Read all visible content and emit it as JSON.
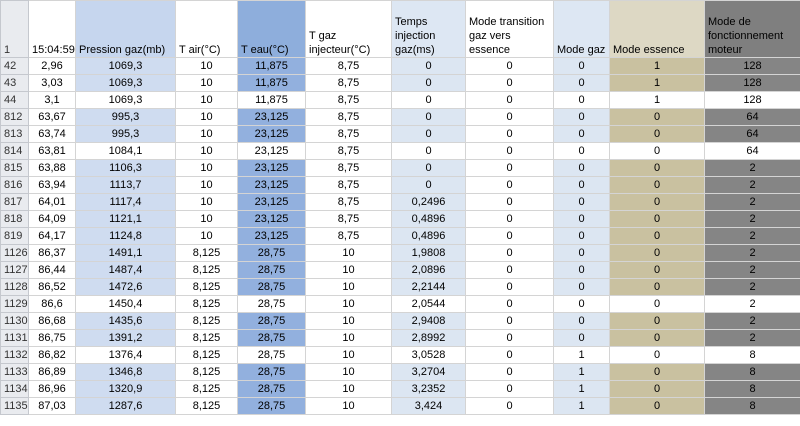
{
  "columns": [
    {
      "key": "row",
      "label": "1"
    },
    {
      "key": "time",
      "label": "15:04:59"
    },
    {
      "key": "pression",
      "label": "Pression gaz(mb)"
    },
    {
      "key": "tair",
      "label": "T air(°C)"
    },
    {
      "key": "teau",
      "label": "T eau(°C)"
    },
    {
      "key": "tgaz",
      "label": "T gaz injecteur(°C)"
    },
    {
      "key": "temps",
      "label": "Temps injection gaz(ms)"
    },
    {
      "key": "transition",
      "label": "Mode transition gaz vers essence"
    },
    {
      "key": "modegaz",
      "label": "Mode gaz"
    },
    {
      "key": "modeessence",
      "label": "Mode essence"
    },
    {
      "key": "fonctionnement",
      "label": "Mode de fonctionnement moteur"
    }
  ],
  "rows": [
    {
      "row": "42",
      "time": "2,96",
      "pression": "1069,3",
      "tair": "10",
      "teau": "11,875",
      "tgaz": "8,75",
      "temps": "0",
      "transition": "0",
      "modegaz": "0",
      "modeessence": "1",
      "fonctionnement": "128",
      "highlight": false,
      "selected": false
    },
    {
      "row": "43",
      "time": "3,03",
      "pression": "1069,3",
      "tair": "10",
      "teau": "11,875",
      "tgaz": "8,75",
      "temps": "0",
      "transition": "0",
      "modegaz": "0",
      "modeessence": "1",
      "fonctionnement": "128",
      "highlight": false,
      "selected": false
    },
    {
      "row": "44",
      "time": "3,1",
      "pression": "1069,3",
      "tair": "10",
      "teau": "11,875",
      "tgaz": "8,75",
      "temps": "0",
      "transition": "0",
      "modegaz": "0",
      "modeessence": "1",
      "fonctionnement": "128",
      "highlight": true,
      "selected": false
    },
    {
      "row": "812",
      "time": "63,67",
      "pression": "995,3",
      "tair": "10",
      "teau": "23,125",
      "tgaz": "8,75",
      "temps": "0",
      "transition": "0",
      "modegaz": "0",
      "modeessence": "0",
      "fonctionnement": "64",
      "highlight": false,
      "selected": true
    },
    {
      "row": "813",
      "time": "63,74",
      "pression": "995,3",
      "tair": "10",
      "teau": "23,125",
      "tgaz": "8,75",
      "temps": "0",
      "transition": "0",
      "modegaz": "0",
      "modeessence": "0",
      "fonctionnement": "64",
      "highlight": false,
      "selected": false
    },
    {
      "row": "814",
      "time": "63,81",
      "pression": "1084,1",
      "tair": "10",
      "teau": "23,125",
      "tgaz": "8,75",
      "temps": "0",
      "transition": "0",
      "modegaz": "0",
      "modeessence": "0",
      "fonctionnement": "64",
      "highlight": true,
      "selected": false
    },
    {
      "row": "815",
      "time": "63,88",
      "pression": "1106,3",
      "tair": "10",
      "teau": "23,125",
      "tgaz": "8,75",
      "temps": "0",
      "transition": "0",
      "modegaz": "0",
      "modeessence": "0",
      "fonctionnement": "2",
      "highlight": false,
      "selected": false
    },
    {
      "row": "816",
      "time": "63,94",
      "pression": "1113,7",
      "tair": "10",
      "teau": "23,125",
      "tgaz": "8,75",
      "temps": "0",
      "transition": "0",
      "modegaz": "0",
      "modeessence": "0",
      "fonctionnement": "2",
      "highlight": false,
      "selected": false
    },
    {
      "row": "817",
      "time": "64,01",
      "pression": "1117,4",
      "tair": "10",
      "teau": "23,125",
      "tgaz": "8,75",
      "temps": "0,2496",
      "transition": "0",
      "modegaz": "0",
      "modeessence": "0",
      "fonctionnement": "2",
      "highlight": false,
      "selected": false
    },
    {
      "row": "818",
      "time": "64,09",
      "pression": "1121,1",
      "tair": "10",
      "teau": "23,125",
      "tgaz": "8,75",
      "temps": "0,4896",
      "transition": "0",
      "modegaz": "0",
      "modeessence": "0",
      "fonctionnement": "2",
      "highlight": false,
      "selected": false
    },
    {
      "row": "819",
      "time": "64,17",
      "pression": "1124,8",
      "tair": "10",
      "teau": "23,125",
      "tgaz": "8,75",
      "temps": "0,4896",
      "transition": "0",
      "modegaz": "0",
      "modeessence": "0",
      "fonctionnement": "2",
      "highlight": false,
      "selected": false
    },
    {
      "row": "1126",
      "time": "86,37",
      "pression": "1491,1",
      "tair": "8,125",
      "teau": "28,75",
      "tgaz": "10",
      "temps": "1,9808",
      "transition": "0",
      "modegaz": "0",
      "modeessence": "0",
      "fonctionnement": "2",
      "highlight": false,
      "selected": false
    },
    {
      "row": "1127",
      "time": "86,44",
      "pression": "1487,4",
      "tair": "8,125",
      "teau": "28,75",
      "tgaz": "10",
      "temps": "2,0896",
      "transition": "0",
      "modegaz": "0",
      "modeessence": "0",
      "fonctionnement": "2",
      "highlight": false,
      "selected": false
    },
    {
      "row": "1128",
      "time": "86,52",
      "pression": "1472,6",
      "tair": "8,125",
      "teau": "28,75",
      "tgaz": "10",
      "temps": "2,2144",
      "transition": "0",
      "modegaz": "0",
      "modeessence": "0",
      "fonctionnement": "2",
      "highlight": false,
      "selected": false
    },
    {
      "row": "1129",
      "time": "86,6",
      "pression": "1450,4",
      "tair": "8,125",
      "teau": "28,75",
      "tgaz": "10",
      "temps": "2,0544",
      "transition": "0",
      "modegaz": "0",
      "modeessence": "0",
      "fonctionnement": "2",
      "highlight": true,
      "selected": false
    },
    {
      "row": "1130",
      "time": "86,68",
      "pression": "1435,6",
      "tair": "8,125",
      "teau": "28,75",
      "tgaz": "10",
      "temps": "2,9408",
      "transition": "0",
      "modegaz": "0",
      "modeessence": "0",
      "fonctionnement": "2",
      "highlight": false,
      "selected": false
    },
    {
      "row": "1131",
      "time": "86,75",
      "pression": "1391,2",
      "tair": "8,125",
      "teau": "28,75",
      "tgaz": "10",
      "temps": "2,8992",
      "transition": "0",
      "modegaz": "0",
      "modeessence": "0",
      "fonctionnement": "2",
      "highlight": false,
      "selected": false
    },
    {
      "row": "1132",
      "time": "86,82",
      "pression": "1376,4",
      "tair": "8,125",
      "teau": "28,75",
      "tgaz": "10",
      "temps": "3,0528",
      "transition": "0",
      "modegaz": "1",
      "modeessence": "0",
      "fonctionnement": "8",
      "highlight": true,
      "selected": false
    },
    {
      "row": "1133",
      "time": "86,89",
      "pression": "1346,8",
      "tair": "8,125",
      "teau": "28,75",
      "tgaz": "10",
      "temps": "3,2704",
      "transition": "0",
      "modegaz": "1",
      "modeessence": "0",
      "fonctionnement": "8",
      "highlight": false,
      "selected": false
    },
    {
      "row": "1134",
      "time": "86,96",
      "pression": "1320,9",
      "tair": "8,125",
      "teau": "28,75",
      "tgaz": "10",
      "temps": "3,2352",
      "transition": "0",
      "modegaz": "1",
      "modeessence": "0",
      "fonctionnement": "8",
      "highlight": false,
      "selected": false
    },
    {
      "row": "1135",
      "time": "87,03",
      "pression": "1287,6",
      "tair": "8,125",
      "teau": "28,75",
      "tgaz": "10",
      "temps": "3,424",
      "transition": "0",
      "modegaz": "1",
      "modeessence": "0",
      "fonctionnement": "8",
      "highlight": false,
      "selected": false
    }
  ]
}
